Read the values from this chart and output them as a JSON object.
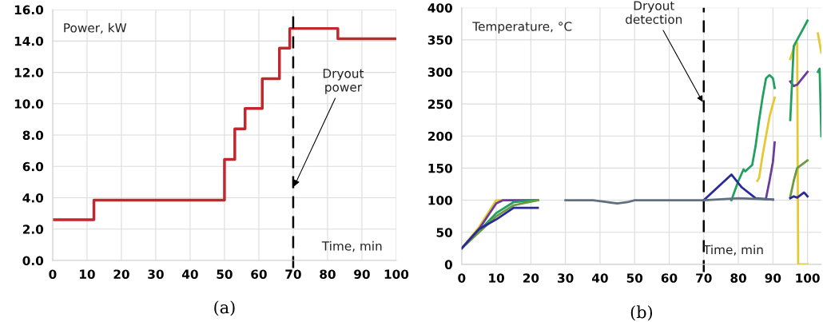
{
  "chart_data": [
    {
      "type": "step",
      "title": "(a)",
      "xlabel": "Time, min",
      "ylabel": "Power, kW",
      "xlim": [
        0,
        100
      ],
      "xticks": [
        0,
        10,
        20,
        30,
        40,
        50,
        60,
        70,
        80,
        90,
        100
      ],
      "ylim": [
        0,
        16
      ],
      "yticks": [
        {
          "value": 0,
          "label": "0.0"
        },
        {
          "value": 2,
          "label": "2.0"
        },
        {
          "value": 4,
          "label": "4.0"
        },
        {
          "value": 6,
          "label": "6.0"
        },
        {
          "value": 8,
          "label": "8.0"
        },
        {
          "value": 10,
          "label": "10.0"
        },
        {
          "value": 12,
          "label": "12.0"
        },
        {
          "value": 14,
          "label": "14.0"
        },
        {
          "value": 16,
          "label": "16.0"
        }
      ],
      "grid": true,
      "series": [
        {
          "color": "#c0282d",
          "x": [
            0,
            12,
            50,
            53,
            56,
            61,
            66,
            69,
            83,
            100
          ],
          "values": [
            2.6,
            3.85,
            6.45,
            8.4,
            9.7,
            11.6,
            13.55,
            14.8,
            14.15,
            14.15
          ]
        }
      ],
      "ref_lines": [
        {
          "axis": "x",
          "value": 70,
          "color": "#000000",
          "line_style": "dashed"
        }
      ],
      "annotations": [
        {
          "text": "Dryout power",
          "x": 70,
          "y": 4.6
        }
      ]
    },
    {
      "type": "line",
      "title": "(b)",
      "xlabel": "Time, min",
      "ylabel": "Temperature, °C",
      "xlim": [
        0,
        104
      ],
      "xticks": [
        0,
        10,
        20,
        30,
        40,
        50,
        60,
        70,
        80,
        90,
        100
      ],
      "ylim": [
        0,
        400
      ],
      "yticks": [
        0,
        50,
        100,
        150,
        200,
        250,
        300,
        350,
        400
      ],
      "grid": true,
      "series": [
        {
          "color": "#e6c832",
          "x": [
            0,
            5,
            10,
            12,
            22,
            50,
            85.5,
            86,
            87,
            88,
            89,
            90.5,
            93,
            95,
            96.5,
            97,
            97.3,
            100,
            102,
            103,
            104
          ],
          "values": [
            25,
            58,
            100,
            100,
            100,
            null,
            130,
            135,
            170,
            200,
            230,
            260,
            null,
            320,
            345,
            345,
            0,
            0,
            null,
            360,
            330
          ]
        },
        {
          "color": "#6a3d9a",
          "x": [
            0,
            5,
            10,
            12,
            22,
            50,
            88,
            89,
            90,
            90.5,
            93,
            95,
            96,
            97,
            100
          ],
          "values": [
            25,
            55,
            95,
            100,
            100,
            null,
            103,
            130,
            160,
            190,
            null,
            285,
            278,
            280,
            300
          ]
        },
        {
          "color": "#22a060",
          "x": [
            0,
            5,
            10,
            15,
            22,
            50,
            78,
            80,
            81.5,
            82,
            84,
            85,
            86,
            87,
            88,
            89,
            90,
            90.5,
            93,
            95,
            95.5,
            96,
            98,
            100,
            102,
            103,
            103.5,
            104
          ],
          "values": [
            25,
            52,
            80,
            97,
            100,
            null,
            100,
            130,
            148,
            145,
            155,
            185,
            225,
            260,
            290,
            295,
            290,
            275,
            null,
            225,
            280,
            340,
            360,
            380,
            null,
            300,
            305,
            200
          ]
        },
        {
          "color": "#6a9a40",
          "x": [
            0,
            5,
            10,
            15,
            22,
            50,
            95,
            96,
            97,
            100
          ],
          "values": [
            25,
            50,
            75,
            92,
            100,
            null,
            105,
            130,
            150,
            162
          ]
        },
        {
          "color": "#2a2a9a",
          "x": [
            0,
            5,
            10,
            15,
            20,
            22,
            50,
            70,
            74,
            78,
            81,
            85,
            90,
            93,
            95,
            96,
            97,
            98,
            99,
            100
          ],
          "values": [
            25,
            55,
            70,
            88,
            88,
            88,
            null,
            100,
            120,
            140,
            120,
            103,
            101,
            null,
            103,
            106,
            104,
            108,
            112,
            106
          ]
        },
        {
          "color": "#607080",
          "x": [
            30,
            35,
            38,
            42,
            45,
            48,
            50,
            60,
            70,
            80,
            85,
            90
          ],
          "values": [
            100,
            100,
            100,
            97,
            95,
            97,
            100,
            100,
            100,
            103,
            102,
            101
          ]
        }
      ],
      "ref_lines": [
        {
          "axis": "x",
          "value": 70,
          "color": "#000000",
          "line_style": "dashed"
        }
      ],
      "annotations": [
        {
          "text": "Dryout detection",
          "x": 70,
          "y": 250
        }
      ]
    }
  ]
}
